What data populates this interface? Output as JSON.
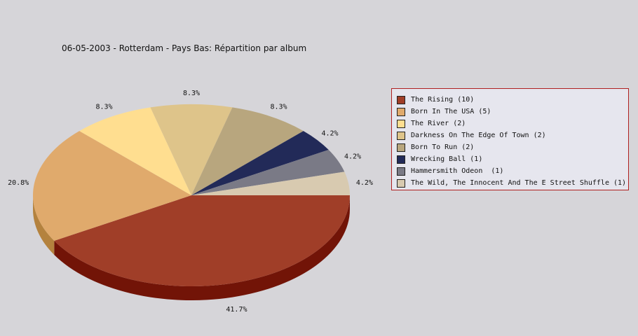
{
  "chart_data": {
    "type": "pie",
    "title": "06-05-2003 - Rotterdam - Pays Bas:  Répartition par album",
    "slices": [
      {
        "label": "The Rising (10)",
        "value": 10,
        "percent_label": "41.7%",
        "color": "#a03e28",
        "side_color": "#721407"
      },
      {
        "label": "Born In The USA (5)",
        "value": 5,
        "percent_label": "20.8%",
        "color": "#e0aa6c",
        "side_color": "#b4823e"
      },
      {
        "label": "The River (2)",
        "value": 2,
        "percent_label": "8.3%",
        "color": "#ffde90",
        "side_color": "#d2b266"
      },
      {
        "label": "Darkness On The Edge Of Town (2)",
        "value": 2,
        "percent_label": "8.3%",
        "color": "#dec48a",
        "side_color": "#b29a62"
      },
      {
        "label": "Born To Run (2)",
        "value": 2,
        "percent_label": "8.3%",
        "color": "#b8a67e",
        "side_color": "#8c7c58"
      },
      {
        "label": "Wrecking Ball (1)",
        "value": 1,
        "percent_label": "4.2%",
        "color": "#222a58",
        "side_color": "#121634"
      },
      {
        "label": "Hammersmith Odeon  (1)",
        "value": 1,
        "percent_label": "4.2%",
        "color": "#7a7a86",
        "side_color": "#54545e"
      },
      {
        "label": "The Wild, The Innocent And The E Street Shuffle (1)",
        "value": 1,
        "percent_label": "4.2%",
        "color": "#d8cab0",
        "side_color": "#ae9e84"
      }
    ],
    "legend_position": "right"
  }
}
